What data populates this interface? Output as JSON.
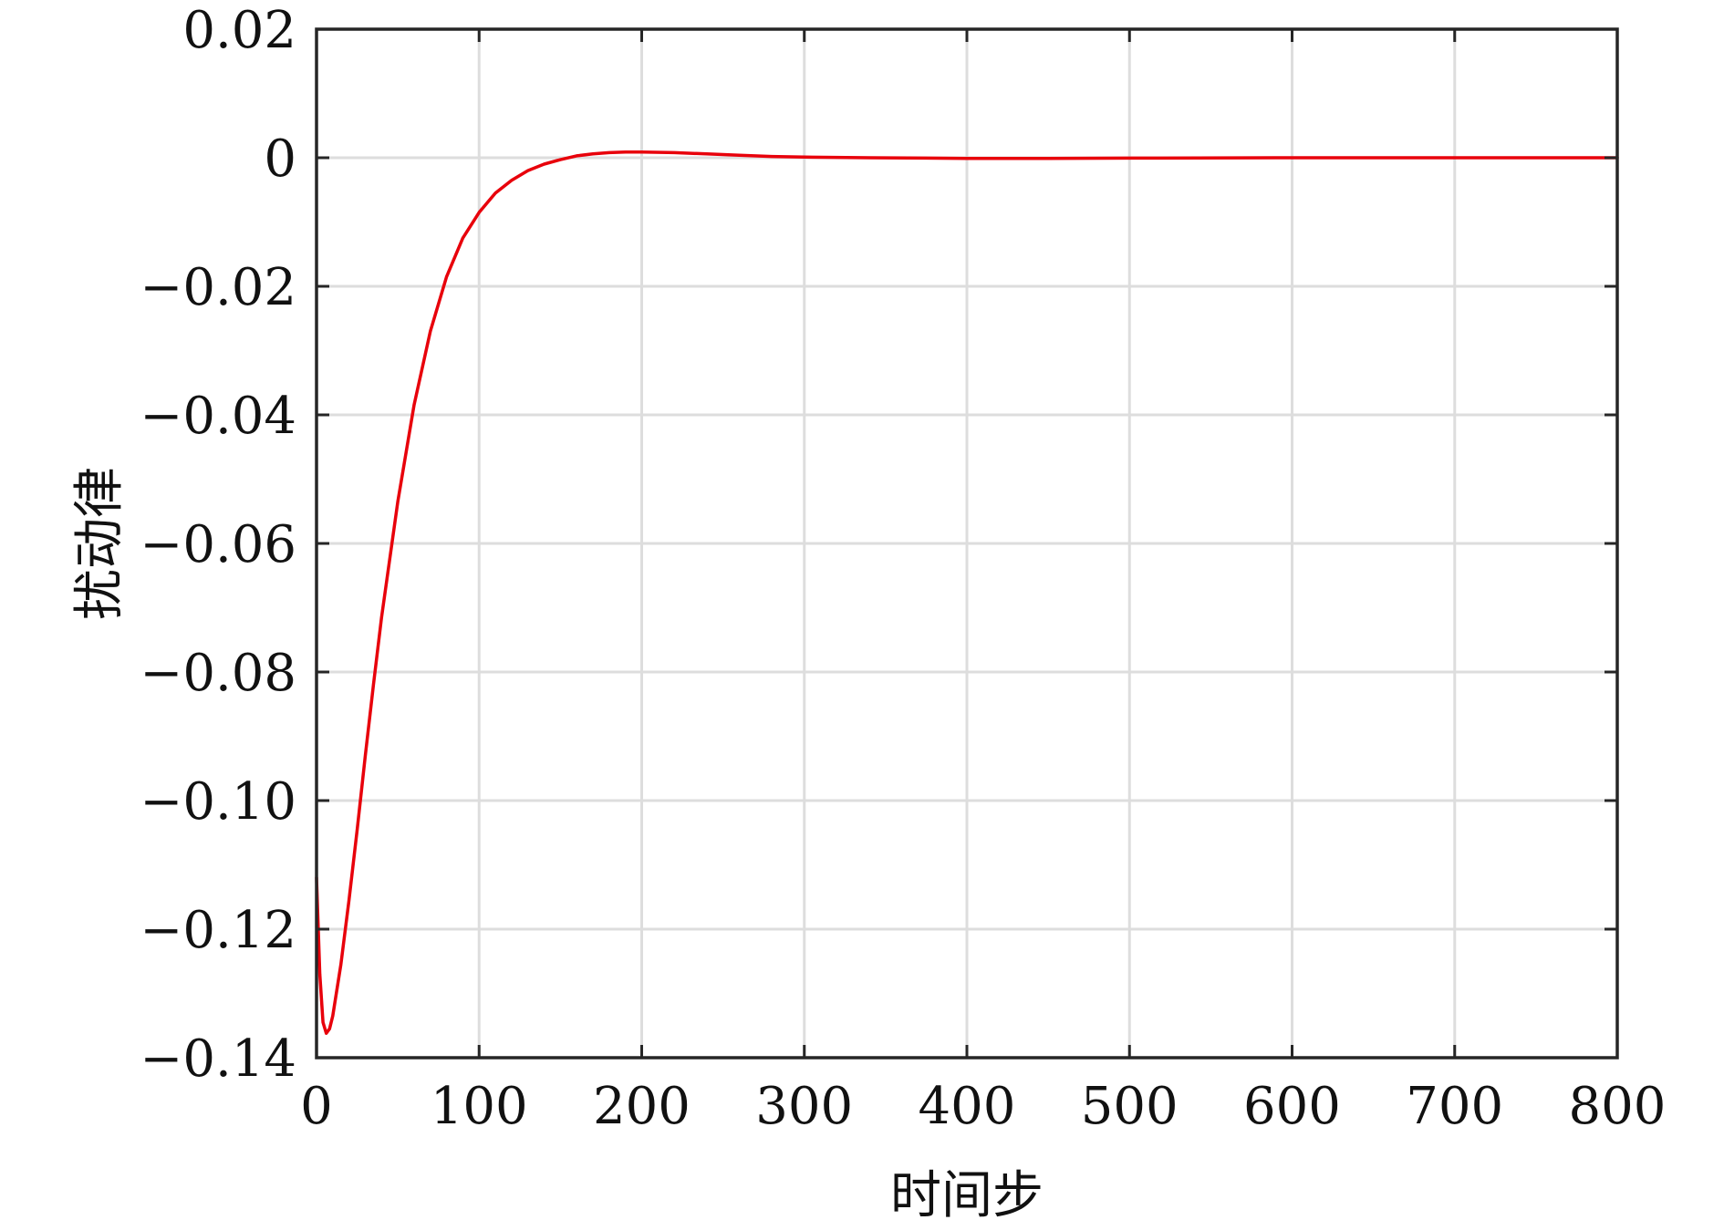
{
  "chart_data": {
    "type": "line",
    "title": "",
    "xlabel": "时间步",
    "ylabel": "扰动律",
    "xlim": [
      0,
      800
    ],
    "ylim": [
      -0.14,
      0.02
    ],
    "xticks": [
      0,
      100,
      200,
      300,
      400,
      500,
      600,
      700,
      800
    ],
    "yticks": [
      -0.14,
      -0.12,
      -0.1,
      -0.08,
      -0.06,
      -0.04,
      -0.02,
      0,
      0.02
    ],
    "xtick_labels": [
      "0",
      "100",
      "200",
      "300",
      "400",
      "500",
      "600",
      "700",
      "800"
    ],
    "ytick_labels": [
      "−0.14",
      "−0.12",
      "−0.10",
      "−0.08",
      "−0.06",
      "−0.04",
      "−0.02",
      "0",
      "0.02"
    ],
    "grid": true,
    "legend": "none",
    "colors": {
      "line": "#e8000b",
      "grid": "#dddddd",
      "axes": "#262626"
    },
    "series": [
      {
        "x": [
          0,
          2,
          4,
          6,
          8,
          10,
          15,
          20,
          25,
          30,
          35,
          40,
          50,
          60,
          70,
          80,
          90,
          100,
          110,
          120,
          130,
          140,
          150,
          160,
          170,
          180,
          190,
          200,
          220,
          240,
          260,
          280,
          300,
          340,
          400,
          450,
          500,
          600,
          700,
          800
        ],
        "y": [
          -0.112,
          -0.127,
          -0.1345,
          -0.1362,
          -0.1355,
          -0.1335,
          -0.1255,
          -0.1155,
          -0.1045,
          -0.093,
          -0.082,
          -0.0715,
          -0.0535,
          -0.0385,
          -0.027,
          -0.0185,
          -0.0125,
          -0.0085,
          -0.0055,
          -0.0035,
          -0.002,
          -0.001,
          -0.0003,
          0.0003,
          0.0006,
          0.0008,
          0.0009,
          0.0009,
          0.0008,
          0.0006,
          0.0004,
          0.0002,
          0.0001,
          0.0,
          -0.0001,
          -0.0001,
          -5e-05,
          0.0,
          0.0,
          0.0
        ]
      }
    ]
  }
}
